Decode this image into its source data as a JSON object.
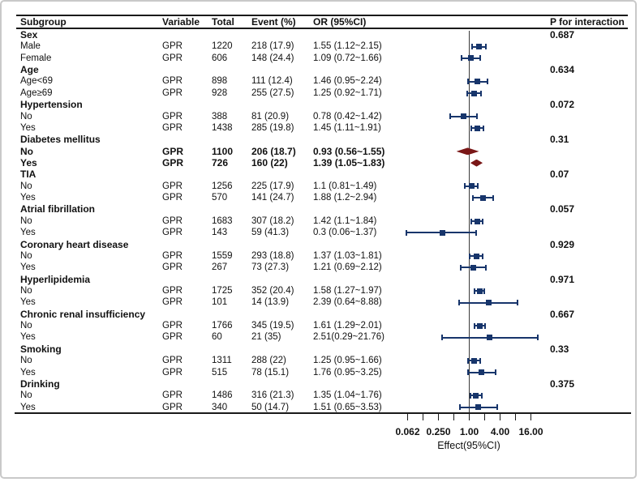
{
  "table": {
    "headers": {
      "subgroup": "Subgroup",
      "variable": "Variable",
      "total": "Total",
      "event": "Event (%)",
      "or": "OR (95%CI)",
      "p": "P for interaction"
    }
  },
  "colors": {
    "marker_blue": "#17356b",
    "diamond_red": "#7a1717",
    "rule_black": "#1a1a1a",
    "frame_gray": "#c9c9c9"
  },
  "chart_data": {
    "type": "forest",
    "x_scale": "log2",
    "xlabel": "Effect(95%CI)",
    "ref_line": 1.0,
    "x_range": [
      0.0625,
      16
    ],
    "tick_values": [
      0.0625,
      0.125,
      0.25,
      0.5,
      1,
      2,
      4,
      8,
      16
    ],
    "tick_labels": [
      {
        "value": 0.0625,
        "label": "0.062"
      },
      {
        "value": 0.25,
        "label": "0.250"
      },
      {
        "value": 1,
        "label": "1.00"
      },
      {
        "value": 4,
        "label": "4.00"
      },
      {
        "value": 16,
        "label": "16.00"
      }
    ],
    "rows": [
      {
        "type": "group",
        "label": "Sex",
        "p": "0.687"
      },
      {
        "type": "item",
        "label": "Male",
        "variable": "GPR",
        "total": "1220",
        "event": "218 (17.9)",
        "or_text": "1.55 (1.12~2.15)",
        "or": 1.55,
        "low": 1.12,
        "high": 2.15,
        "marker": "square",
        "bold": false
      },
      {
        "type": "item",
        "label": "Female",
        "variable": "GPR",
        "total": "606",
        "event": "148 (24.4)",
        "or_text": "1.09 (0.72~1.66)",
        "or": 1.09,
        "low": 0.72,
        "high": 1.66,
        "marker": "square",
        "bold": false
      },
      {
        "type": "group",
        "label": "Age",
        "p": "0.634"
      },
      {
        "type": "item",
        "label": "Age<69",
        "variable": "GPR",
        "total": "898",
        "event": "111 (12.4)",
        "or_text": "1.46 (0.95~2.24)",
        "or": 1.46,
        "low": 0.95,
        "high": 2.24,
        "marker": "square",
        "bold": false
      },
      {
        "type": "item",
        "label": "Age≥69",
        "variable": "GPR",
        "total": "928",
        "event": "255 (27.5)",
        "or_text": "1.25 (0.92~1.71)",
        "or": 1.25,
        "low": 0.92,
        "high": 1.71,
        "marker": "square",
        "bold": false
      },
      {
        "type": "group",
        "label": "Hypertension",
        "p": "0.072"
      },
      {
        "type": "item",
        "label": "No",
        "variable": "GPR",
        "total": "388",
        "event": "81 (20.9)",
        "or_text": "0.78 (0.42~1.42)",
        "or": 0.78,
        "low": 0.42,
        "high": 1.42,
        "marker": "square",
        "bold": false
      },
      {
        "type": "item",
        "label": "Yes",
        "variable": "GPR",
        "total": "1438",
        "event": "285 (19.8)",
        "or_text": "1.45 (1.11~1.91)",
        "or": 1.45,
        "low": 1.11,
        "high": 1.91,
        "marker": "square",
        "bold": false
      },
      {
        "type": "group",
        "label": "Diabetes mellitus",
        "p": "0.31"
      },
      {
        "type": "item",
        "label": "No",
        "variable": "GPR",
        "total": "1100",
        "event": "206 (18.7)",
        "or_text": "0.93 (0.56~1.55)",
        "or": 0.93,
        "low": 0.56,
        "high": 1.55,
        "marker": "diamond",
        "bold": true
      },
      {
        "type": "item",
        "label": "Yes",
        "variable": "GPR",
        "total": "726",
        "event": "160 (22)",
        "or_text": "1.39 (1.05~1.83)",
        "or": 1.39,
        "low": 1.05,
        "high": 1.83,
        "marker": "diamond",
        "bold": true
      },
      {
        "type": "group",
        "label": "TIA",
        "p": "0.07"
      },
      {
        "type": "item",
        "label": "No",
        "variable": "GPR",
        "total": "1256",
        "event": "225 (17.9)",
        "or_text": "1.1 (0.81~1.49)",
        "or": 1.1,
        "low": 0.81,
        "high": 1.49,
        "marker": "square",
        "bold": false
      },
      {
        "type": "item",
        "label": "Yes",
        "variable": "GPR",
        "total": "570",
        "event": "141 (24.7)",
        "or_text": "1.88 (1.2~2.94)",
        "or": 1.88,
        "low": 1.2,
        "high": 2.94,
        "marker": "square",
        "bold": false
      },
      {
        "type": "group",
        "label": "Atrial fibrillation",
        "p": "0.057"
      },
      {
        "type": "item",
        "label": "No",
        "variable": "GPR",
        "total": "1683",
        "event": "307 (18.2)",
        "or_text": "1.42 (1.1~1.84)",
        "or": 1.42,
        "low": 1.1,
        "high": 1.84,
        "marker": "square",
        "bold": false
      },
      {
        "type": "item",
        "label": "Yes",
        "variable": "GPR",
        "total": "143",
        "event": "59 (41.3)",
        "or_text": "0.3 (0.06~1.37)",
        "or": 0.3,
        "low": 0.06,
        "high": 1.37,
        "marker": "square",
        "bold": false
      },
      {
        "type": "group",
        "label": "Coronary heart disease",
        "p": "0.929"
      },
      {
        "type": "item",
        "label": "No",
        "variable": "GPR",
        "total": "1559",
        "event": "293 (18.8)",
        "or_text": "1.37 (1.03~1.81)",
        "or": 1.37,
        "low": 1.03,
        "high": 1.81,
        "marker": "square",
        "bold": false
      },
      {
        "type": "item",
        "label": "Yes",
        "variable": "GPR",
        "total": "267",
        "event": "73 (27.3)",
        "or_text": "1.21 (0.69~2.12)",
        "or": 1.21,
        "low": 0.69,
        "high": 2.12,
        "marker": "square",
        "bold": false
      },
      {
        "type": "group",
        "label": "Hyperlipidemia",
        "p": "0.971"
      },
      {
        "type": "item",
        "label": "No",
        "variable": "GPR",
        "total": "1725",
        "event": "352 (20.4)",
        "or_text": "1.58 (1.27~1.97)",
        "or": 1.58,
        "low": 1.27,
        "high": 1.97,
        "marker": "square",
        "bold": false
      },
      {
        "type": "item",
        "label": "Yes",
        "variable": "GPR",
        "total": "101",
        "event": "14 (13.9)",
        "or_text": "2.39 (0.64~8.88)",
        "or": 2.39,
        "low": 0.64,
        "high": 8.88,
        "marker": "square",
        "bold": false
      },
      {
        "type": "group",
        "label": "Chronic renal insufficiency",
        "p": "0.667"
      },
      {
        "type": "item",
        "label": "No",
        "variable": "GPR",
        "total": "1766",
        "event": "345 (19.5)",
        "or_text": "1.61 (1.29~2.01)",
        "or": 1.61,
        "low": 1.29,
        "high": 2.01,
        "marker": "square",
        "bold": false
      },
      {
        "type": "item",
        "label": "Yes",
        "variable": "GPR",
        "total": "60",
        "event": "21 (35)",
        "or_text": "2.51(0.29~21.76)",
        "or": 2.51,
        "low": 0.29,
        "high": 21.76,
        "marker": "square",
        "bold": false
      },
      {
        "type": "group",
        "label": "Smoking",
        "p": "0.33"
      },
      {
        "type": "item",
        "label": "No",
        "variable": "GPR",
        "total": "1311",
        "event": "288 (22)",
        "or_text": "1.25 (0.95~1.66)",
        "or": 1.25,
        "low": 0.95,
        "high": 1.66,
        "marker": "square",
        "bold": false
      },
      {
        "type": "item",
        "label": "Yes",
        "variable": "GPR",
        "total": "515",
        "event": "78 (15.1)",
        "or_text": "1.76 (0.95~3.25)",
        "or": 1.76,
        "low": 0.95,
        "high": 3.25,
        "marker": "square",
        "bold": false
      },
      {
        "type": "group",
        "label": "Drinking",
        "p": "0.375"
      },
      {
        "type": "item",
        "label": "No",
        "variable": "GPR",
        "total": "1486",
        "event": "316 (21.3)",
        "or_text": "1.35 (1.04~1.76)",
        "or": 1.35,
        "low": 1.04,
        "high": 1.76,
        "marker": "square",
        "bold": false
      },
      {
        "type": "item",
        "label": "Yes",
        "variable": "GPR",
        "total": "340",
        "event": "50 (14.7)",
        "or_text": "1.51 (0.65~3.53)",
        "or": 1.51,
        "low": 0.65,
        "high": 3.53,
        "marker": "square",
        "bold": false
      }
    ]
  }
}
